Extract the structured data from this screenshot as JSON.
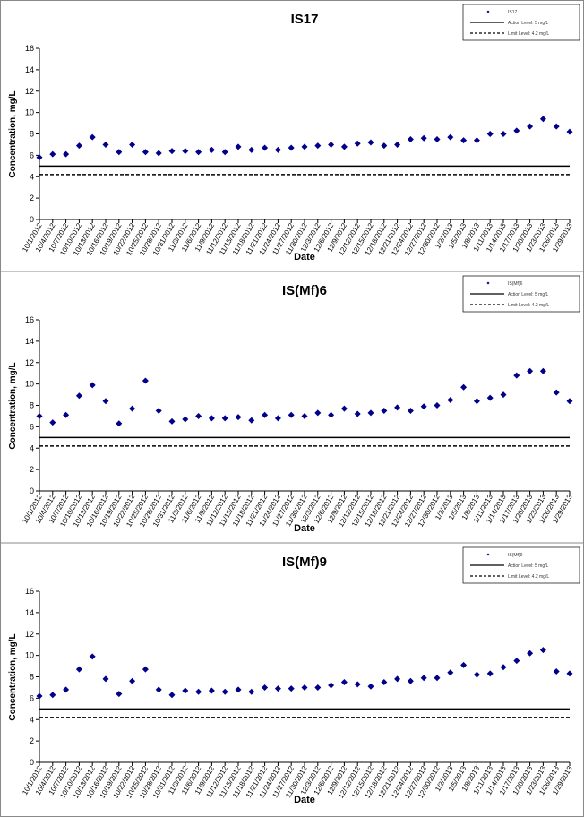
{
  "chart_data": [
    {
      "type": "scatter",
      "title": "IS17",
      "x_label": "Date",
      "y_label": "Concentration, mg/L",
      "categories": [
        "10/1/2012",
        "10/4/2012",
        "10/7/2012",
        "10/10/2012",
        "10/13/2012",
        "10/16/2012",
        "10/19/2012",
        "10/22/2012",
        "10/25/2012",
        "10/28/2012",
        "10/31/2012",
        "11/3/2012",
        "11/6/2012",
        "11/9/2012",
        "11/12/2012",
        "11/15/2012",
        "11/18/2012",
        "11/21/2012",
        "11/24/2012",
        "11/27/2012",
        "11/30/2012",
        "12/3/2012",
        "12/6/2012",
        "12/9/2012",
        "12/12/2012",
        "12/15/2012",
        "12/18/2012",
        "12/21/2012",
        "12/24/2012",
        "12/27/2012",
        "12/30/2012",
        "1/2/2013",
        "1/5/2013",
        "1/8/2013",
        "1/11/2013",
        "1/14/2013",
        "1/17/2013",
        "1/20/2013",
        "1/23/2013",
        "1/26/2013",
        "1/29/2013"
      ],
      "series": [
        {
          "name": "IS17",
          "color": "#00008b",
          "values": [
            5.8,
            6.1,
            6.1,
            6.9,
            7.7,
            7.0,
            6.3,
            7.0,
            6.3,
            6.2,
            6.4,
            6.4,
            6.3,
            6.5,
            6.3,
            6.8,
            6.5,
            6.7,
            6.5,
            6.7,
            6.8,
            6.9,
            7.0,
            6.8,
            7.1,
            7.2,
            6.9,
            7.0,
            7.5,
            7.6,
            7.5,
            7.7,
            7.4,
            7.4,
            8.0,
            8.0,
            8.3,
            8.7,
            9.4,
            8.7,
            8.2
          ]
        }
      ],
      "reference_lines": [
        {
          "name": "Action Level: 5 mg/L",
          "value": 5,
          "style": "solid"
        },
        {
          "name": "Limit Level: 4.2 mg/L",
          "value": 4.2,
          "style": "dashed"
        }
      ],
      "ylim": [
        0,
        16
      ],
      "yticks": [
        0,
        2,
        4,
        6,
        8,
        10,
        12,
        14,
        16
      ],
      "legend": "top-right"
    },
    {
      "type": "scatter",
      "title": "IS(Mf)6",
      "x_label": "Date",
      "y_label": "Concentration, mg/L",
      "categories": [
        "10/1/2012",
        "10/4/2012",
        "10/7/2012",
        "10/10/2012",
        "10/13/2012",
        "10/16/2012",
        "10/19/2012",
        "10/22/2012",
        "10/25/2012",
        "10/28/2012",
        "10/31/2012",
        "11/3/2012",
        "11/6/2012",
        "11/9/2012",
        "11/12/2012",
        "11/15/2012",
        "11/18/2012",
        "11/21/2012",
        "11/24/2012",
        "11/27/2012",
        "11/30/2012",
        "12/3/2012",
        "12/6/2012",
        "12/9/2012",
        "12/12/2012",
        "12/15/2012",
        "12/18/2012",
        "12/21/2012",
        "12/24/2012",
        "12/27/2012",
        "12/30/2012",
        "1/2/2013",
        "1/5/2013",
        "1/8/2013",
        "1/11/2013",
        "1/14/2013",
        "1/17/2013",
        "1/20/2013",
        "1/23/2013",
        "1/26/2013",
        "1/29/2013"
      ],
      "series": [
        {
          "name": "IS(Mf)6",
          "color": "#00008b",
          "values": [
            7.0,
            6.4,
            7.1,
            8.9,
            9.9,
            8.4,
            6.3,
            7.7,
            10.3,
            7.5,
            6.5,
            6.7,
            7.0,
            6.8,
            6.8,
            6.9,
            6.6,
            7.1,
            6.8,
            7.1,
            7.0,
            7.3,
            7.1,
            7.7,
            7.2,
            7.3,
            7.5,
            7.8,
            7.5,
            7.9,
            8.0,
            8.5,
            9.7,
            8.4,
            8.7,
            9.0,
            10.8,
            11.2,
            11.2,
            9.2,
            8.4
          ]
        }
      ],
      "reference_lines": [
        {
          "name": "Action Level: 5 mg/L",
          "value": 5,
          "style": "solid"
        },
        {
          "name": "Limit Level: 4.2 mg/L",
          "value": 4.2,
          "style": "dashed"
        }
      ],
      "ylim": [
        0,
        16
      ],
      "yticks": [
        0,
        2,
        4,
        6,
        8,
        10,
        12,
        14,
        16
      ],
      "legend": "top-right"
    },
    {
      "type": "scatter",
      "title": "IS(Mf)9",
      "x_label": "Date",
      "y_label": "Concentration, mg/L",
      "categories": [
        "10/1/2012",
        "10/4/2012",
        "10/7/2012",
        "10/10/2012",
        "10/13/2012",
        "10/16/2012",
        "10/19/2012",
        "10/22/2012",
        "10/25/2012",
        "10/28/2012",
        "10/31/2012",
        "11/3/2012",
        "11/6/2012",
        "11/9/2012",
        "11/12/2012",
        "11/15/2012",
        "11/18/2012",
        "11/21/2012",
        "11/24/2012",
        "11/27/2012",
        "11/30/2012",
        "12/3/2012",
        "12/6/2012",
        "12/9/2012",
        "12/12/2012",
        "12/15/2012",
        "12/18/2012",
        "12/21/2012",
        "12/24/2012",
        "12/27/2012",
        "12/30/2012",
        "1/2/2013",
        "1/5/2013",
        "1/8/2013",
        "1/11/2013",
        "1/14/2013",
        "1/17/2013",
        "1/20/2013",
        "1/23/2013",
        "1/26/2013",
        "1/29/2013"
      ],
      "series": [
        {
          "name": "IS(Mf)9",
          "color": "#00008b",
          "values": [
            6.2,
            6.3,
            6.8,
            8.7,
            9.9,
            7.8,
            6.4,
            7.6,
            8.7,
            6.8,
            6.3,
            6.7,
            6.6,
            6.7,
            6.6,
            6.8,
            6.6,
            7.0,
            6.9,
            6.9,
            7.0,
            7.0,
            7.2,
            7.5,
            7.3,
            7.1,
            7.5,
            7.8,
            7.6,
            7.9,
            7.9,
            8.4,
            9.1,
            8.2,
            8.3,
            8.9,
            9.5,
            10.2,
            10.5,
            8.5,
            8.3
          ]
        }
      ],
      "reference_lines": [
        {
          "name": "Action Level: 5 mg/L",
          "value": 5,
          "style": "solid"
        },
        {
          "name": "Limit Level: 4.2 mg/L",
          "value": 4.2,
          "style": "dashed"
        }
      ],
      "ylim": [
        0,
        16
      ],
      "yticks": [
        0,
        2,
        4,
        6,
        8,
        10,
        12,
        14,
        16
      ],
      "legend": "top-right"
    }
  ]
}
